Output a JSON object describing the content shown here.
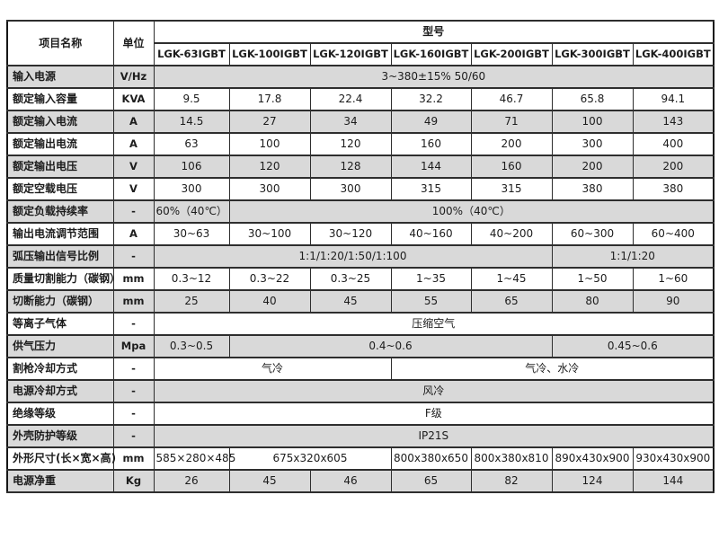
{
  "colors": {
    "stripe": "#d9d9d9",
    "border": "#2e2e2e",
    "text": "#1c1c1c",
    "background": "#ffffff"
  },
  "table": {
    "header": {
      "item_name": "项目名称",
      "unit": "单位",
      "model": "型号",
      "models": [
        "LGK-63IGBT",
        "LGK-100IGBT",
        "LGK-120IGBT",
        "LGK-160IGBT",
        "LGK-200IGBT",
        "LGK-300IGBT",
        "LGK-400IGBT"
      ]
    },
    "rows": [
      {
        "label": "输入电源",
        "unit": "V/Hz",
        "shade": true,
        "cells": [
          {
            "span": 7,
            "text": "3~380±15% 50/60"
          }
        ]
      },
      {
        "label": "额定输入容量",
        "unit": "KVA",
        "shade": false,
        "cells": [
          {
            "text": "9.5"
          },
          {
            "text": "17.8"
          },
          {
            "text": "22.4"
          },
          {
            "text": "32.2"
          },
          {
            "text": "46.7"
          },
          {
            "text": "65.8"
          },
          {
            "text": "94.1"
          }
        ]
      },
      {
        "label": "额定输入电流",
        "unit": "A",
        "shade": true,
        "cells": [
          {
            "text": "14.5"
          },
          {
            "text": "27"
          },
          {
            "text": "34"
          },
          {
            "text": "49"
          },
          {
            "text": "71"
          },
          {
            "text": "100"
          },
          {
            "text": "143"
          }
        ]
      },
      {
        "label": "额定输出电流",
        "unit": "A",
        "shade": false,
        "cells": [
          {
            "text": "63"
          },
          {
            "text": "100"
          },
          {
            "text": "120"
          },
          {
            "text": "160"
          },
          {
            "text": "200"
          },
          {
            "text": "300"
          },
          {
            "text": "400"
          }
        ]
      },
      {
        "label": "额定输出电压",
        "unit": "V",
        "shade": true,
        "cells": [
          {
            "text": "106"
          },
          {
            "text": "120"
          },
          {
            "text": "128"
          },
          {
            "text": "144"
          },
          {
            "text": "160"
          },
          {
            "text": "200"
          },
          {
            "text": "200"
          }
        ]
      },
      {
        "label": "额定空载电压",
        "unit": "V",
        "shade": false,
        "cells": [
          {
            "text": "300"
          },
          {
            "text": "300"
          },
          {
            "text": "300"
          },
          {
            "text": "315"
          },
          {
            "text": "315"
          },
          {
            "text": "380"
          },
          {
            "text": "380"
          }
        ]
      },
      {
        "label": "额定负载持续率",
        "unit": "-",
        "shade": true,
        "cells": [
          {
            "text": "60%（40℃）"
          },
          {
            "span": 6,
            "text": "100%（40℃）"
          }
        ]
      },
      {
        "label": "输出电流调节范围",
        "unit": "A",
        "shade": false,
        "cells": [
          {
            "text": "30~63"
          },
          {
            "text": "30~100"
          },
          {
            "text": "30~120"
          },
          {
            "text": "40~160"
          },
          {
            "text": "40~200"
          },
          {
            "text": "60~300"
          },
          {
            "text": "60~400"
          }
        ]
      },
      {
        "label": "弧压输出信号比例",
        "unit": "-",
        "shade": true,
        "cells": [
          {
            "span": 5,
            "text": "1:1/1:20/1:50/1:100"
          },
          {
            "span": 2,
            "text": "1:1/1:20"
          }
        ]
      },
      {
        "label": "质量切割能力（碳钢）",
        "unit": "mm",
        "shade": false,
        "cells": [
          {
            "text": "0.3~12"
          },
          {
            "text": "0.3~22"
          },
          {
            "text": "0.3~25"
          },
          {
            "text": "1~35"
          },
          {
            "text": "1~45"
          },
          {
            "text": "1~50"
          },
          {
            "text": "1~60"
          }
        ]
      },
      {
        "label": "切断能力（碳钢）",
        "unit": "mm",
        "shade": true,
        "cells": [
          {
            "text": "25"
          },
          {
            "text": "40"
          },
          {
            "text": "45"
          },
          {
            "text": "55"
          },
          {
            "text": "65"
          },
          {
            "text": "80"
          },
          {
            "text": "90"
          }
        ]
      },
      {
        "label": "等离子气体",
        "unit": "-",
        "shade": false,
        "cells": [
          {
            "span": 7,
            "text": "压缩空气"
          }
        ]
      },
      {
        "label": "供气压力",
        "unit": "Mpa",
        "shade": true,
        "cells": [
          {
            "text": "0.3~0.5"
          },
          {
            "span": 4,
            "text": "0.4~0.6"
          },
          {
            "span": 2,
            "text": "0.45~0.6"
          }
        ]
      },
      {
        "label": "割枪冷却方式",
        "unit": "-",
        "shade": false,
        "cells": [
          {
            "span": 3,
            "text": "气冷"
          },
          {
            "span": 4,
            "text": "气冷、水冷"
          }
        ]
      },
      {
        "label": "电源冷却方式",
        "unit": "-",
        "shade": true,
        "cells": [
          {
            "span": 7,
            "text": "风冷"
          }
        ]
      },
      {
        "label": "绝缘等级",
        "unit": "-",
        "shade": false,
        "cells": [
          {
            "span": 7,
            "text": "F级"
          }
        ]
      },
      {
        "label": "外壳防护等级",
        "unit": "-",
        "shade": true,
        "cells": [
          {
            "span": 7,
            "text": "IP21S"
          }
        ]
      },
      {
        "label": "外形尺寸(长×宽×高)",
        "unit": "mm",
        "shade": false,
        "cells": [
          {
            "text": "585×280×485"
          },
          {
            "span": 2,
            "text": "675x320x605"
          },
          {
            "text": "800x380x650"
          },
          {
            "text": "800x380x810"
          },
          {
            "text": "890x430x900"
          },
          {
            "text": "930x430x900"
          }
        ]
      },
      {
        "label": "电源净重",
        "unit": "Kg",
        "shade": true,
        "cells": [
          {
            "text": "26"
          },
          {
            "text": "45"
          },
          {
            "text": "46"
          },
          {
            "text": "65"
          },
          {
            "text": "82"
          },
          {
            "text": "124"
          },
          {
            "text": "144"
          }
        ]
      }
    ]
  }
}
